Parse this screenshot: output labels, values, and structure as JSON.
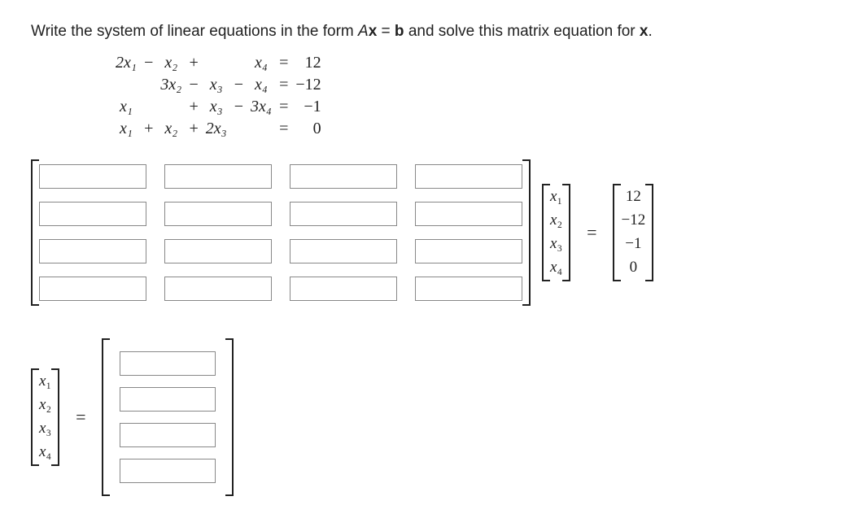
{
  "prompt": {
    "text_prefix": "Write the system of linear equations in the form ",
    "Ax_html": "A",
    "text_mid1": " = ",
    "b_bold": "b",
    "text_mid2": " and solve this matrix equation for ",
    "x_bold": "x",
    "text_suffix": "."
  },
  "equations": {
    "rows": [
      {
        "c": [
          "2x₁",
          "−",
          "x₂",
          "+",
          "",
          "",
          "x₄",
          "=",
          "12"
        ]
      },
      {
        "c": [
          "",
          "",
          "3x₂",
          "−",
          "x₃",
          "−",
          "x₄",
          "=",
          "−12"
        ]
      },
      {
        "c": [
          "x₁",
          "",
          "",
          "+",
          "x₃",
          "−",
          "3x₄",
          "=",
          "−1"
        ]
      },
      {
        "c": [
          "x₁",
          "+",
          "x₂",
          "+",
          "2x₃",
          "",
          "",
          "=",
          "0"
        ]
      }
    ]
  },
  "matrix_A": {
    "rows": 4,
    "cols": 4,
    "values": [
      [
        "",
        "",
        "",
        ""
      ],
      [
        "",
        "",
        "",
        ""
      ],
      [
        "",
        "",
        "",
        ""
      ],
      [
        "",
        "",
        "",
        ""
      ]
    ]
  },
  "x_vector": {
    "labels": [
      "x₁",
      "x₂",
      "x₃",
      "x₄"
    ]
  },
  "b_vector": {
    "values": [
      "12",
      "−12",
      "−1",
      "0"
    ]
  },
  "eq_sign": "=",
  "solution_vector": {
    "labels": [
      "x₁",
      "x₂",
      "x₃",
      "x₄"
    ],
    "values": [
      "",
      "",
      "",
      ""
    ]
  },
  "colors": {
    "text": "#222222",
    "input_border": "#888888",
    "background": "#ffffff"
  }
}
